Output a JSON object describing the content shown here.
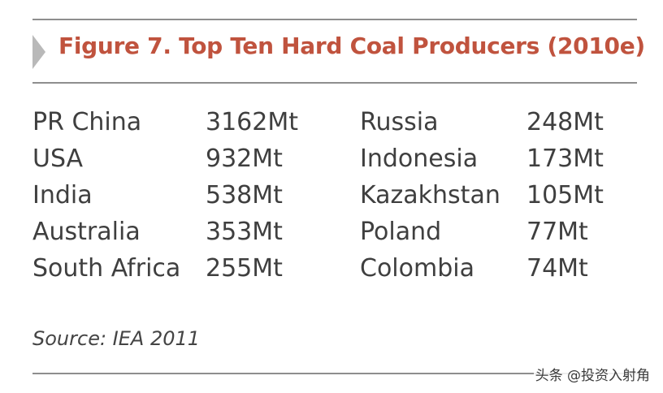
{
  "title": "Figure 7. Top Ten Hard Coal Producers (2010e)",
  "source": "Source: IEA 2011",
  "watermark": "头条 @投资入射角",
  "colors": {
    "title": "#c0533e",
    "rules": "#8e8e8e",
    "arrow": "#b9b9b9",
    "text": "#3f3f3f"
  },
  "chart_data": {
    "type": "table",
    "title": "Figure 7. Top Ten Hard Coal Producers (2010e)",
    "unit": "Mt",
    "rows": [
      {
        "country": "PR China",
        "value": 3162,
        "label": "3162Mt"
      },
      {
        "country": "USA",
        "value": 932,
        "label": "932Mt"
      },
      {
        "country": "India",
        "value": 538,
        "label": "538Mt"
      },
      {
        "country": "Australia",
        "value": 353,
        "label": "353Mt"
      },
      {
        "country": "South Africa",
        "value": 255,
        "label": "255Mt"
      },
      {
        "country": "Russia",
        "value": 248,
        "label": "248Mt"
      },
      {
        "country": "Indonesia",
        "value": 173,
        "label": "173Mt"
      },
      {
        "country": "Kazakhstan",
        "value": 105,
        "label": "105Mt"
      },
      {
        "country": "Poland",
        "value": 77,
        "label": "77Mt"
      },
      {
        "country": "Colombia",
        "value": 74,
        "label": "74Mt"
      }
    ],
    "source": "Source: IEA 2011"
  }
}
